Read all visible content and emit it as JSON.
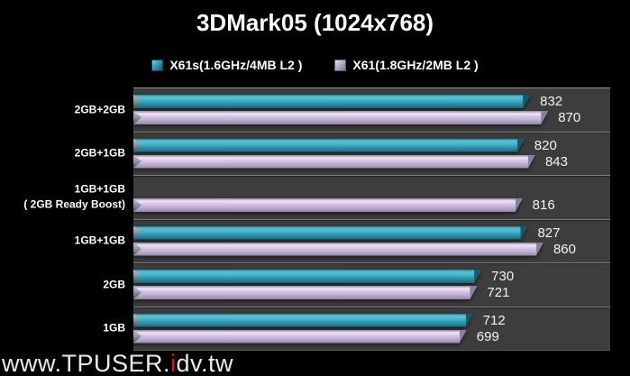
{
  "title": "3DMark05 (1024x768)",
  "legend": [
    {
      "label": "X61s(1.6GHz/4MB L2 )",
      "color": "#2f9fb6"
    },
    {
      "label": "X61(1.8GHz/2MB L2 )",
      "color": "#cdbce0"
    }
  ],
  "watermark": {
    "prefix": "www.TPUSER.",
    "highlight": "i",
    "suffix": "dv.tw",
    "highlight_color": "#e01010"
  },
  "chart_data": {
    "type": "bar",
    "orientation": "horizontal",
    "title": "3DMark05 (1024x768)",
    "categories": [
      "2GB+2GB",
      "2GB+1GB",
      "1GB+1GB\n( 2GB Ready Boost)",
      "1GB+1GB",
      "2GB",
      "1GB"
    ],
    "series": [
      {
        "name": "X61s(1.6GHz/4MB L2 )",
        "color": "#2f9fb6",
        "values": [
          832,
          820,
          null,
          827,
          730,
          712
        ]
      },
      {
        "name": "X61(1.8GHz/2MB L2 )",
        "color": "#cdbce0",
        "values": [
          870,
          843,
          816,
          860,
          721,
          699
        ]
      }
    ],
    "xlim": [
      0,
      1000
    ],
    "value_labels": true,
    "grid": false,
    "legend_position": "top",
    "plot_background": "#3d3d3d",
    "page_background": "#000000"
  }
}
